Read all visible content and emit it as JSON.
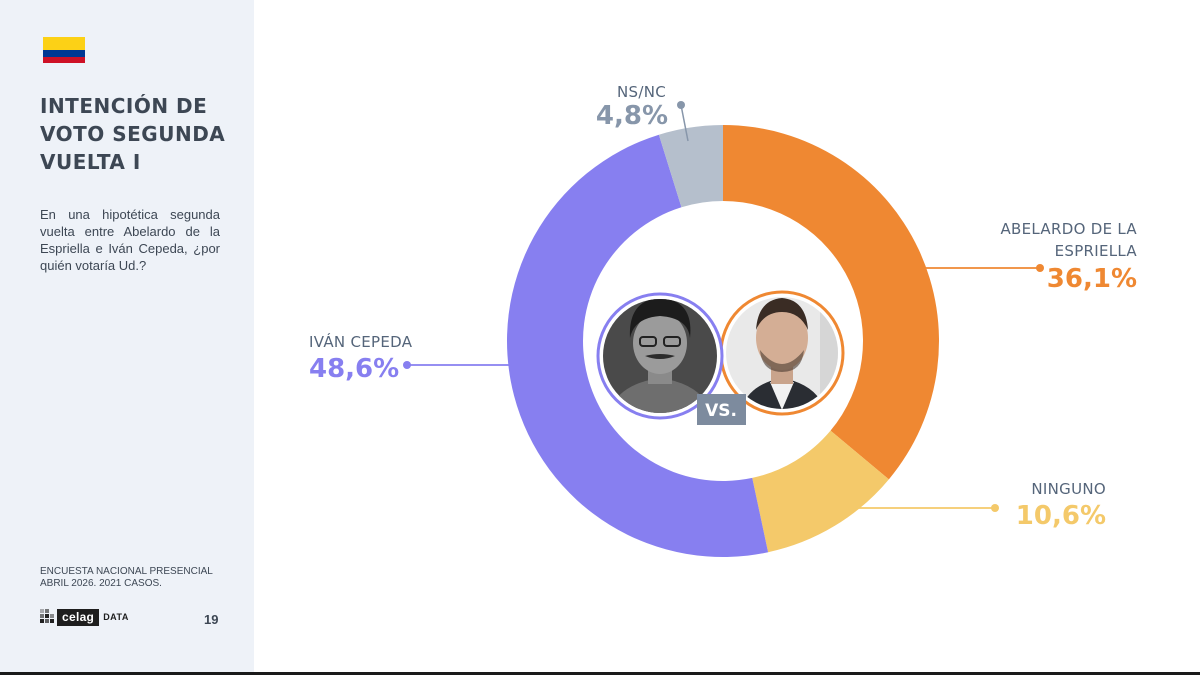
{
  "flag": {
    "colors": [
      "#fcd116",
      "#003893",
      "#ce1126"
    ]
  },
  "title": "INTENCIÓN DE\nVOTO SEGUNDA\nVUELTA I",
  "subtitle": "En una hipotética segunda vuelta entre Abelardo de la Espriella e Iván Cepeda, ¿por quién votaría Ud.?",
  "footnote": "ENCUESTA NACIONAL PRESENCIAL\nABRIL 2026. 2021 CASOS.",
  "logo": {
    "name": "celag",
    "suffix": "DATA"
  },
  "page_number": "19",
  "center": {
    "vs_label": "VS.",
    "vs_bg": "#7d8b9e"
  },
  "chart_data": {
    "type": "pie",
    "donut": true,
    "start": "top",
    "direction": "clockwise",
    "slices": [
      {
        "label": "ABELARDO DE LA ESPRIELLA",
        "value": 36.1,
        "value_label": "36,1%",
        "color": "#ef8832",
        "text_color": "#ef8832",
        "name_color": "#55657a"
      },
      {
        "label": "NINGUNO",
        "value": 10.6,
        "value_label": "10,6%",
        "color": "#f4c96a",
        "text_color": "#f4c96a",
        "name_color": "#55657a"
      },
      {
        "label": "IVÁN CEPEDA",
        "value": 48.6,
        "value_label": "48,6%",
        "color": "#877ff0",
        "text_color": "#877ff0",
        "name_color": "#55657a"
      },
      {
        "label": "NS/NC",
        "value": 4.8,
        "value_label": "4,8%",
        "color": "#b5bfcc",
        "text_color": "#8796aa",
        "name_color": "#55657a"
      }
    ]
  }
}
